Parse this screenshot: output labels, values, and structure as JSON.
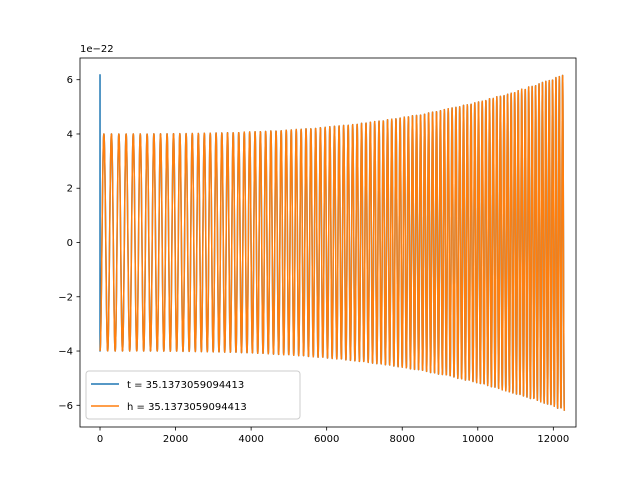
{
  "chart_data": {
    "type": "line",
    "title": "",
    "xlabel": "",
    "ylabel": "",
    "y_offset_label": "1e−22",
    "xlim": [
      -530,
      12600
    ],
    "ylim": [
      -6.8,
      6.8
    ],
    "y_scale_exponent": -22,
    "x_ticks": [
      0,
      2000,
      4000,
      6000,
      8000,
      10000,
      12000
    ],
    "x_tick_labels": [
      "0",
      "2000",
      "4000",
      "6000",
      "8000",
      "10000",
      "12000"
    ],
    "y_ticks": [
      -6,
      -4,
      -2,
      0,
      2,
      4,
      6
    ],
    "y_tick_labels": [
      "−6",
      "−4",
      "−2",
      "0",
      "2",
      "4",
      "6"
    ],
    "grid": false,
    "legend_position": "lower-left",
    "x_range": [
      0,
      12290
    ],
    "envelope_start": 4.0,
    "envelope_end": 6.2,
    "cycles": 100,
    "series": [
      {
        "name": "t = 35.1373059094413",
        "color": "#1f77b4",
        "initial_spike": 6.2,
        "envelope_start": 4.0,
        "envelope_end": 6.2
      },
      {
        "name": "h = 35.1373059094413",
        "color": "#ff7f0e",
        "envelope_start": 4.0,
        "envelope_end": 6.2
      }
    ]
  }
}
